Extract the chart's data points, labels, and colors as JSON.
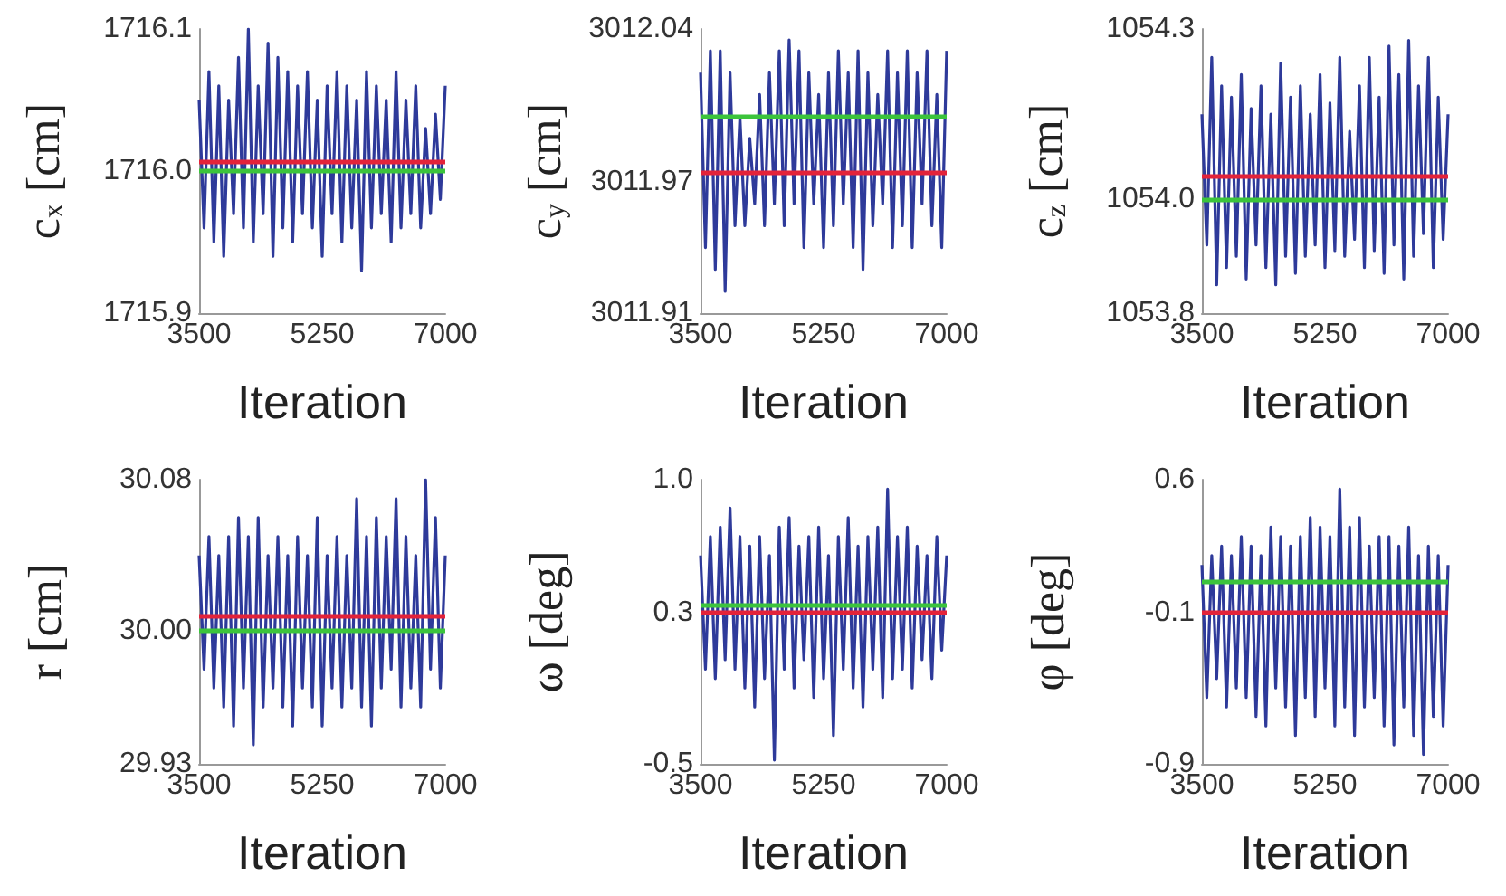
{
  "chart_data": [
    {
      "type": "line",
      "xlabel": "Iteration",
      "ylabel": "c$_{x}$ [cm]",
      "marker": "none",
      "xlim": [
        3500,
        7000
      ],
      "xticks": [
        3500,
        5250,
        7000
      ],
      "ylim": [
        1715.9,
        1716.1
      ],
      "yticks": [
        1715.9,
        {
          "value": 1716,
          "label": "1716.0"
        },
        1716.1
      ],
      "x": [
        3500,
        3570,
        3640,
        3710,
        3780,
        3850,
        3920,
        3990,
        4060,
        4130,
        4200,
        4270,
        4340,
        4410,
        4480,
        4550,
        4620,
        4690,
        4760,
        4830,
        4900,
        4970,
        5040,
        5110,
        5180,
        5250,
        5320,
        5390,
        5460,
        5530,
        5600,
        5670,
        5740,
        5810,
        5880,
        5950,
        6020,
        6090,
        6160,
        6230,
        6300,
        6370,
        6440,
        6510,
        6580,
        6650,
        6720,
        6790,
        6860,
        6930,
        7000
      ],
      "series": [
        {
          "color": "#2e3a9a",
          "values": [
            1716.05,
            1715.96,
            1716.07,
            1715.95,
            1716.06,
            1715.94,
            1716.05,
            1715.97,
            1716.08,
            1715.96,
            1716.1,
            1715.95,
            1716.06,
            1715.97,
            1716.09,
            1715.94,
            1716.08,
            1715.96,
            1716.07,
            1715.95,
            1716.06,
            1715.97,
            1716.07,
            1715.96,
            1716.05,
            1715.94,
            1716.06,
            1715.97,
            1716.07,
            1715.95,
            1716.06,
            1715.96,
            1716.05,
            1715.93,
            1716.07,
            1715.96,
            1716.06,
            1715.97,
            1716.05,
            1715.95,
            1716.07,
            1715.96,
            1716.05,
            1715.97,
            1716.06,
            1715.96,
            1716.03,
            1715.97,
            1716.04,
            1715.98,
            1716.06
          ]
        }
      ],
      "ref_lines": [
        {
          "axis": "y",
          "value": 1716.007,
          "color": "#e3233a"
        },
        {
          "axis": "y",
          "value": 1716.0,
          "color": "#3cc43c"
        }
      ]
    },
    {
      "type": "line",
      "xlabel": "Iteration",
      "ylabel": "c$_{y}$ [cm]",
      "marker": "none",
      "xlim": [
        3500,
        7000
      ],
      "xticks": [
        3500,
        5250,
        7000
      ],
      "ylim": [
        3011.91,
        3012.04
      ],
      "yticks": [
        3011.91,
        3011.97,
        3012.04
      ],
      "x": [
        3500,
        3570,
        3640,
        3710,
        3780,
        3850,
        3920,
        3990,
        4060,
        4130,
        4200,
        4270,
        4340,
        4410,
        4480,
        4550,
        4620,
        4690,
        4760,
        4830,
        4900,
        4970,
        5040,
        5110,
        5180,
        5250,
        5320,
        5390,
        5460,
        5530,
        5600,
        5670,
        5740,
        5810,
        5880,
        5950,
        6020,
        6090,
        6160,
        6230,
        6300,
        6370,
        6440,
        6510,
        6580,
        6650,
        6720,
        6790,
        6860,
        6930,
        7000
      ],
      "series": [
        {
          "color": "#2e3a9a",
          "values": [
            3012.02,
            3011.94,
            3012.03,
            3011.93,
            3012.03,
            3011.92,
            3012.02,
            3011.95,
            3012.0,
            3011.95,
            3011.99,
            3011.96,
            3012.01,
            3011.95,
            3012.02,
            3011.96,
            3012.03,
            3011.95,
            3012.035,
            3011.96,
            3012.03,
            3011.94,
            3012.02,
            3011.96,
            3012.01,
            3011.94,
            3012.02,
            3011.95,
            3012.03,
            3011.96,
            3012.02,
            3011.94,
            3012.03,
            3011.93,
            3012.02,
            3011.95,
            3012.01,
            3011.96,
            3012.03,
            3011.94,
            3012.02,
            3011.95,
            3012.03,
            3011.94,
            3012.02,
            3011.96,
            3012.03,
            3011.95,
            3012.01,
            3011.94,
            3012.03
          ]
        }
      ],
      "ref_lines": [
        {
          "axis": "y",
          "value": 3011.974,
          "color": "#e3233a"
        },
        {
          "axis": "y",
          "value": 3012.0,
          "color": "#3cc43c"
        }
      ]
    },
    {
      "type": "line",
      "xlabel": "Iteration",
      "ylabel": "c$_{z}$ [cm]",
      "marker": "none",
      "xlim": [
        3500,
        7000
      ],
      "xticks": [
        3500,
        5250,
        7000
      ],
      "ylim": [
        1053.8,
        1054.3
      ],
      "yticks": [
        1053.8,
        {
          "value": 1054,
          "label": "1054.0"
        },
        1054.3
      ],
      "x": [
        3500,
        3570,
        3640,
        3710,
        3780,
        3850,
        3920,
        3990,
        4060,
        4130,
        4200,
        4270,
        4340,
        4410,
        4480,
        4550,
        4620,
        4690,
        4760,
        4830,
        4900,
        4970,
        5040,
        5110,
        5180,
        5250,
        5320,
        5390,
        5460,
        5530,
        5600,
        5670,
        5740,
        5810,
        5880,
        5950,
        6020,
        6090,
        6160,
        6230,
        6300,
        6370,
        6440,
        6510,
        6580,
        6650,
        6720,
        6790,
        6860,
        6930,
        7000
      ],
      "series": [
        {
          "color": "#2e3a9a",
          "values": [
            1054.15,
            1053.92,
            1054.25,
            1053.85,
            1054.2,
            1053.88,
            1054.18,
            1053.9,
            1054.22,
            1053.86,
            1054.16,
            1053.92,
            1054.2,
            1053.88,
            1054.15,
            1053.85,
            1054.24,
            1053.9,
            1054.18,
            1053.87,
            1054.2,
            1053.9,
            1054.15,
            1053.92,
            1054.22,
            1053.88,
            1054.17,
            1053.91,
            1054.25,
            1053.9,
            1054.12,
            1053.93,
            1054.2,
            1053.88,
            1054.25,
            1053.91,
            1054.18,
            1053.87,
            1054.27,
            1053.92,
            1054.22,
            1053.86,
            1054.28,
            1053.9,
            1054.2,
            1053.94,
            1054.25,
            1053.88,
            1054.18,
            1053.93,
            1054.15
          ]
        }
      ],
      "ref_lines": [
        {
          "axis": "y",
          "value": 1054.04,
          "color": "#e3233a"
        },
        {
          "axis": "y",
          "value": 1054.0,
          "color": "#3cc43c"
        }
      ]
    },
    {
      "type": "line",
      "xlabel": "Iteration",
      "ylabel": "r [cm]",
      "marker": "none",
      "xlim": [
        3500,
        7000
      ],
      "xticks": [
        3500,
        5250,
        7000
      ],
      "ylim": [
        29.93,
        30.08
      ],
      "yticks": [
        29.93,
        {
          "value": 30,
          "label": "30.00"
        },
        30.08
      ],
      "x": [
        3500,
        3570,
        3640,
        3710,
        3780,
        3850,
        3920,
        3990,
        4060,
        4130,
        4200,
        4270,
        4340,
        4410,
        4480,
        4550,
        4620,
        4690,
        4760,
        4830,
        4900,
        4970,
        5040,
        5110,
        5180,
        5250,
        5320,
        5390,
        5460,
        5530,
        5600,
        5670,
        5740,
        5810,
        5880,
        5950,
        6020,
        6090,
        6160,
        6230,
        6300,
        6370,
        6440,
        6510,
        6580,
        6650,
        6720,
        6790,
        6860,
        6930,
        7000
      ],
      "series": [
        {
          "color": "#2e3a9a",
          "values": [
            30.04,
            29.98,
            30.05,
            29.97,
            30.04,
            29.96,
            30.05,
            29.95,
            30.06,
            29.97,
            30.05,
            29.94,
            30.06,
            29.96,
            30.04,
            29.97,
            30.05,
            29.96,
            30.04,
            29.95,
            30.05,
            29.97,
            30.04,
            29.96,
            30.06,
            29.95,
            30.04,
            29.97,
            30.05,
            29.96,
            30.04,
            29.97,
            30.07,
            29.96,
            30.05,
            29.95,
            30.06,
            29.97,
            30.05,
            29.98,
            30.07,
            29.96,
            30.05,
            29.97,
            30.04,
            29.96,
            30.08,
            29.98,
            30.06,
            29.97,
            30.04
          ]
        }
      ],
      "ref_lines": [
        {
          "axis": "y",
          "value": 30.008,
          "color": "#e3233a"
        },
        {
          "axis": "y",
          "value": 30.0,
          "color": "#3cc43c"
        }
      ]
    },
    {
      "type": "line",
      "xlabel": "Iteration",
      "ylabel": "ω [deg]",
      "marker": "none",
      "xlim": [
        3500,
        7000
      ],
      "xticks": [
        3500,
        5250,
        7000
      ],
      "ylim": [
        -0.5,
        1.0
      ],
      "yticks": [
        -0.5,
        0.3,
        {
          "value": 1,
          "label": "1.0"
        }
      ],
      "x": [
        3500,
        3570,
        3640,
        3710,
        3780,
        3850,
        3920,
        3990,
        4060,
        4130,
        4200,
        4270,
        4340,
        4410,
        4480,
        4550,
        4620,
        4690,
        4760,
        4830,
        4900,
        4970,
        5040,
        5110,
        5180,
        5250,
        5320,
        5390,
        5460,
        5530,
        5600,
        5670,
        5740,
        5810,
        5880,
        5950,
        6020,
        6090,
        6160,
        6230,
        6300,
        6370,
        6440,
        6510,
        6580,
        6650,
        6720,
        6790,
        6860,
        6930,
        7000
      ],
      "series": [
        {
          "color": "#2e3a9a",
          "values": [
            0.6,
            0.0,
            0.7,
            -0.05,
            0.75,
            0.05,
            0.85,
            0.0,
            0.7,
            -0.1,
            0.65,
            -0.2,
            0.7,
            -0.05,
            0.6,
            -0.48,
            0.75,
            0.0,
            0.8,
            -0.1,
            0.65,
            0.05,
            0.7,
            -0.15,
            0.75,
            -0.05,
            0.6,
            -0.35,
            0.7,
            0.0,
            0.8,
            -0.1,
            0.65,
            -0.2,
            0.7,
            0.0,
            0.75,
            -0.15,
            0.95,
            -0.05,
            0.7,
            0.0,
            0.75,
            -0.1,
            0.65,
            0.05,
            0.6,
            -0.05,
            0.7,
            0.1,
            0.6
          ]
        }
      ],
      "ref_lines": [
        {
          "axis": "y",
          "value": 0.3,
          "color": "#e3233a"
        },
        {
          "axis": "y",
          "value": 0.34,
          "color": "#3cc43c"
        }
      ]
    },
    {
      "type": "line",
      "xlabel": "Iteration",
      "ylabel": "φ [deg]",
      "marker": "none",
      "xlim": [
        3500,
        7000
      ],
      "xticks": [
        3500,
        5250,
        7000
      ],
      "ylim": [
        -0.9,
        0.6
      ],
      "yticks": [
        -0.9,
        -0.1,
        0.6
      ],
      "x": [
        3500,
        3570,
        3640,
        3710,
        3780,
        3850,
        3920,
        3990,
        4060,
        4130,
        4200,
        4270,
        4340,
        4410,
        4480,
        4550,
        4620,
        4690,
        4760,
        4830,
        4900,
        4970,
        5040,
        5110,
        5180,
        5250,
        5320,
        5390,
        5460,
        5530,
        5600,
        5670,
        5740,
        5810,
        5880,
        5950,
        6020,
        6090,
        6160,
        6230,
        6300,
        6370,
        6440,
        6510,
        6580,
        6650,
        6720,
        6790,
        6860,
        6930,
        7000
      ],
      "series": [
        {
          "color": "#2e3a9a",
          "values": [
            0.15,
            -0.55,
            0.2,
            -0.45,
            0.25,
            -0.6,
            0.2,
            -0.5,
            0.3,
            -0.55,
            0.25,
            -0.65,
            0.2,
            -0.7,
            0.35,
            -0.5,
            0.3,
            -0.6,
            0.25,
            -0.75,
            0.3,
            -0.55,
            0.4,
            -0.65,
            0.35,
            -0.5,
            0.3,
            -0.7,
            0.55,
            -0.6,
            0.35,
            -0.75,
            0.4,
            -0.6,
            0.25,
            -0.55,
            0.3,
            -0.7,
            0.3,
            -0.8,
            0.25,
            -0.6,
            0.35,
            -0.75,
            0.2,
            -0.85,
            0.25,
            -0.65,
            0.2,
            -0.7,
            0.15
          ]
        }
      ],
      "ref_lines": [
        {
          "axis": "y",
          "value": -0.1,
          "color": "#e3233a"
        },
        {
          "axis": "y",
          "value": 0.06,
          "color": "#3cc43c"
        }
      ]
    }
  ]
}
